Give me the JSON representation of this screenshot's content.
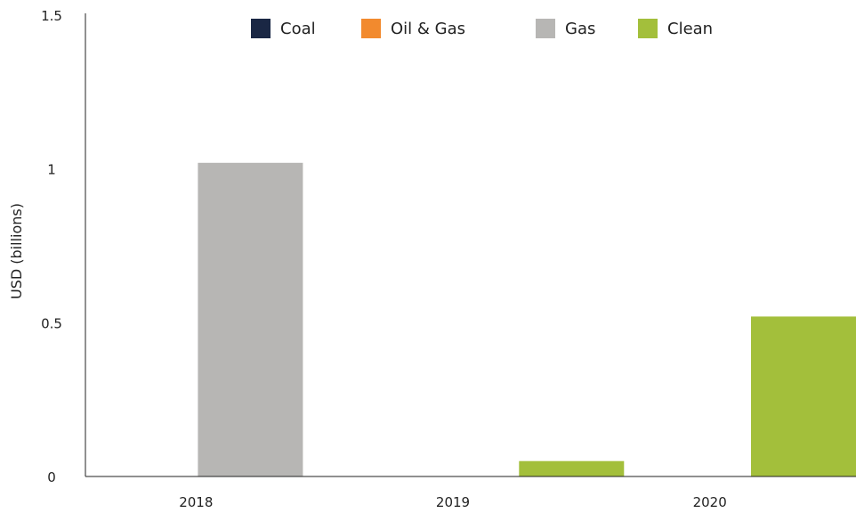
{
  "chart_data": {
    "type": "bar",
    "ylabel": "USD (billions)",
    "xlabel": "",
    "ylim": [
      0,
      1.5
    ],
    "yticks": [
      0,
      0.5,
      1,
      1.5
    ],
    "ytick_labels": [
      "0",
      "0.5",
      "1",
      "1.5"
    ],
    "categories": [
      "2018",
      "2019",
      "2020"
    ],
    "legend_position": "top",
    "grid": false,
    "series": [
      {
        "name": "Coal",
        "color": "#1a2744",
        "values": [
          0,
          0,
          0
        ]
      },
      {
        "name": "Oil & Gas",
        "color": "#f28a2e",
        "values": [
          0,
          0,
          0
        ]
      },
      {
        "name": "Gas",
        "color": "#b7b6b4",
        "values": [
          1.02,
          0,
          0
        ]
      },
      {
        "name": "Clean",
        "color": "#a3bf3b",
        "values": [
          0,
          0.05,
          0.52
        ]
      }
    ]
  }
}
